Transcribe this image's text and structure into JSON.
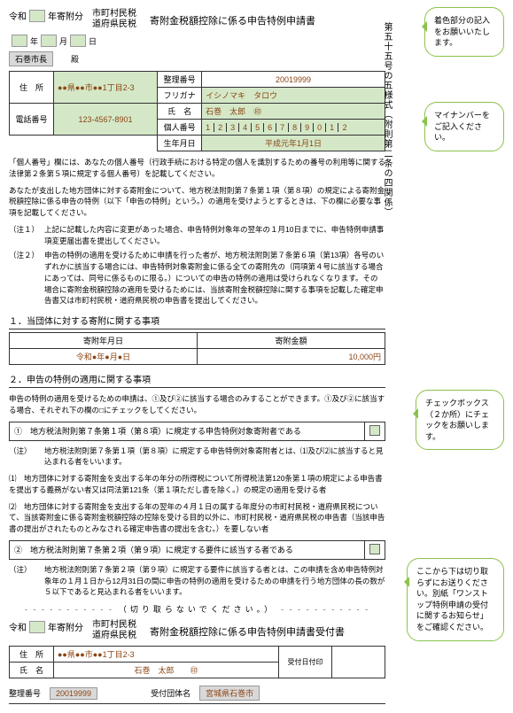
{
  "callouts": {
    "c1": "着色部分の記入をお願いいたします。",
    "c2": "マイナンバーをご記入ください。",
    "c3": "チェックボックス（２か所）にチェックをお願いします。",
    "c4": "ここから下は切り取らずにお送りください。別紙「ワンストップ特例申請の受付に関するお知らせ」をご確認ください。"
  },
  "vertical_title": "第五十五号の五様式（附則第二条の四関係）",
  "reiwa": "令和",
  "year_suffix": "年寄附分",
  "tax_names": "市町村民税\n道府県民税",
  "main_title": "寄附金税額控除に係る申告特例申請書",
  "date_parts": {
    "y": "年",
    "m": "月",
    "d": "日"
  },
  "mayor": "石巻市長",
  "mayor_suffix": "殿",
  "labels": {
    "seiri": "整理番号",
    "furigana": "フリガナ",
    "name": "氏　名",
    "kojin": "個人番号",
    "address": "住　所",
    "phone": "電話番号",
    "birth": "生年月日",
    "seal": "㊞"
  },
  "data": {
    "seiri_no": "20019999",
    "furigana": "イシノマキ　タロウ",
    "name": "石巻　太郎",
    "kojin": [
      "1",
      "2",
      "3",
      "4",
      "5",
      "6",
      "7",
      "8",
      "9",
      "0",
      "1",
      "2"
    ],
    "address": "●●県●●市●●1丁目2-3",
    "phone": "123-4567-8901",
    "birth": "平成元年1月1日"
  },
  "body1": "「個人番号」欄には、あなたの個人番号（行政手続における特定の個人を識別するための番号の利用等に関する法律第２条第５項に規定する個人番号）を記載してください。",
  "body2": "あなたが支出した地方団体に対する寄附金について、地方税法附則第７条第１項（第８項）の規定による寄附金税額控除に係る申告の特例（以下「申告の特例」という。）の適用を受けようとするときは、下の欄に必要な事項を記載してください。",
  "note1_lbl": "（注１）",
  "note1": "上記に記載した内容に変更があった場合、申告特例対象年の翌年の１月10日までに、申告特例申請事項変更届出書を提出してください。",
  "note2_lbl": "（注２）",
  "note2": "申告の特例の適用を受けるために申請を行った者が、地方税法附則第７条第６項（第13項）各号のいずれかに該当する場合には、申告特例対象寄附金に係る全ての寄附先の（同項第４号に該当する場合にあっては、同号に係るものに限る。）についての申告の特例の適用は受けられなくなります。その場合に寄附金税額控除の適用を受けるためには、当該寄附金税額控除に関する事項を記載した確定申告書又は市町村民税・道府県民税の申告書を提出してください。",
  "sec1_title": "１．当団体に対する寄附に関する事項",
  "sec1_col1": "寄附年月日",
  "sec1_col2": "寄附金額",
  "sec1_date": "令和●年●月●日",
  "sec1_amount": "10,000円",
  "sec2_title": "２．申告の特例の適用に関する事項",
  "sec2_intro": "申告の特例の適用を受けるための申請は、①及び②に該当する場合のみすることができます。①及び②に該当する場合、それぞれ下の欄の□にチェックをしてください。",
  "check1": "①　地方税法附則第７条第１項（第８項）に規定する申告特例対象寄附者である",
  "check1_note_lbl": "（注）",
  "check1_note": "地方税法附則第７条第１項（第８項）に規定する申告特例対象寄附者とは、⑴及び⑵に該当すると見込まれる者をいいます。",
  "check1_sub1": "⑴　地方団体に対する寄附金を支出する年の年分の所得税について所得税法第120条第１項の規定による申告書を提出する義務がない者又は同法第121条（第１項ただし書を除く。）の規定の適用を受ける者",
  "check1_sub2": "⑵　地方団体に対する寄附金を支出する年の翌年の４月１日の属する年度分の市町村民税・道府県民税について、当該寄附金に係る寄附金税額控除の控除を受ける目的以外に、市町村民税・道府県民税の申告書（当該申告書の提出がされたものとみなされる確定申告書の提出を含む。）を要しない者",
  "check2": "②　地方税法附則第７条第２項（第９項）に規定する要件に該当する者である",
  "check2_note_lbl": "（注）",
  "check2_note": "地方税法附則第７条第２項（第９項）に規定する要件に該当する者とは、この申請を含め申告特例対象年の１月１日から12月31日の間に申告の特例の適用を受けるための申請を行う地方団体の長の数が５以下であると見込まれる者をいいます。",
  "cut_text": "（切り取らないでください。）",
  "receipt_title": "寄附金税額控除に係る申告特例申請書受付書",
  "receipt_labels": {
    "address": "住　所",
    "name": "氏　名",
    "date_stamp": "受付日付印",
    "seiri": "整理番号",
    "org": "受付団体名"
  },
  "receipt_data": {
    "address": "●●県●●市●●1丁目2-3",
    "name": "石巻　太郎",
    "seiri": "20019999",
    "org": "宮城県石巻市"
  }
}
